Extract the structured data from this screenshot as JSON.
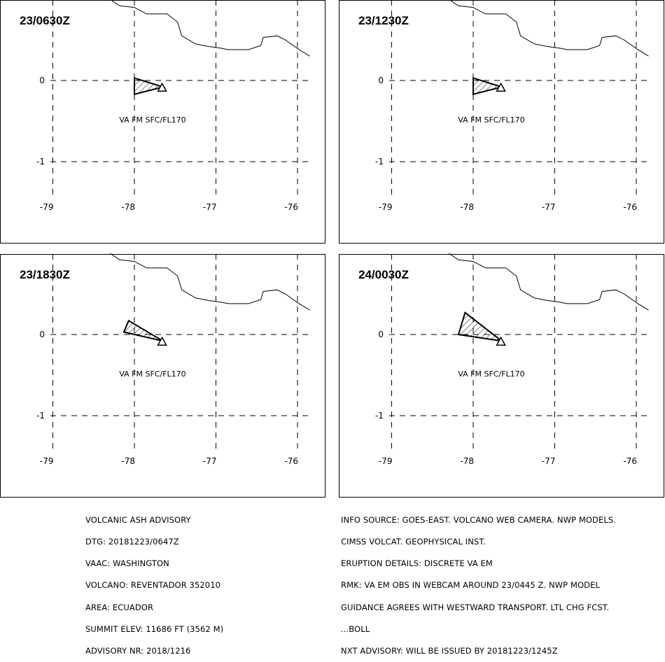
{
  "panels": [
    {
      "time": "23/0630Z",
      "label": "VA FM SFC/FL170",
      "ash_polygon": [
        [
          -78.0,
          -0.17
        ],
        [
          -78.0,
          0.03
        ],
        [
          -77.65,
          -0.08
        ]
      ]
    },
    {
      "time": "23/1230Z",
      "label": "VA FM SFC/FL170",
      "ash_polygon": [
        [
          -78.0,
          -0.17
        ],
        [
          -78.0,
          0.03
        ],
        [
          -77.65,
          -0.08
        ]
      ]
    },
    {
      "time": "23/1830Z",
      "label": "VA FM SFC/FL170",
      "ash_polygon": [
        [
          -78.13,
          0.03
        ],
        [
          -78.07,
          0.17
        ],
        [
          -77.65,
          -0.08
        ]
      ]
    },
    {
      "time": "24/0030Z",
      "label": "VA FM SFC/FL170",
      "ash_polygon": [
        [
          -78.18,
          0.0
        ],
        [
          -78.1,
          0.27
        ],
        [
          -77.65,
          -0.08
        ]
      ]
    }
  ],
  "map": {
    "lon_ticks": [
      "-79",
      "-78",
      "-77",
      "-76"
    ],
    "lat_ticks": [
      "0",
      "-1"
    ],
    "lon_range": [
      -79.0,
      -75.85
    ],
    "lat_range": [
      -1.5,
      1.0
    ],
    "gridlines": "dashed",
    "volcano_marker": "triangle-icon",
    "volcano_location": [
      -77.66,
      -0.08
    ],
    "border_line": [
      [
        -78.3,
        1.0
      ],
      [
        -78.18,
        0.92
      ],
      [
        -78.0,
        0.9
      ],
      [
        -77.85,
        0.82
      ],
      [
        -77.6,
        0.82
      ],
      [
        -77.47,
        0.72
      ],
      [
        -77.42,
        0.55
      ],
      [
        -77.25,
        0.45
      ],
      [
        -77.1,
        0.42
      ],
      [
        -76.95,
        0.4
      ],
      [
        -76.85,
        0.38
      ],
      [
        -76.6,
        0.38
      ],
      [
        -76.45,
        0.43
      ],
      [
        -76.42,
        0.53
      ],
      [
        -76.25,
        0.55
      ],
      [
        -76.15,
        0.5
      ],
      [
        -75.98,
        0.38
      ],
      [
        -75.85,
        0.3
      ]
    ]
  },
  "advisory_left": [
    "VOLCANIC ASH ADVISORY",
    "DTG: 20181223/0647Z",
    "VAAC: WASHINGTON",
    "VOLCANO: REVENTADOR 352010",
    "AREA: ECUADOR",
    "SUMMIT ELEV: 11686 FT (3562 M)",
    "ADVISORY NR: 2018/1216"
  ],
  "advisory_right": [
    "INFO SOURCE: GOES-EAST. VOLCANO WEB CAMERA. NWP MODELS.",
    "CIMSS VOLCAT. GEOPHYSICAL INST.",
    "ERUPTION DETAILS: DISCRETE VA EM",
    "RMK: VA EM OBS IN WEBCAM AROUND 23/0445 Z. NWP MODEL",
    "GUIDANCE AGREES WITH WESTWARD TRANSPORT. LTL CHG FCST.",
    "...BOLL",
    "NXT ADVISORY: WILL BE ISSUED BY 20181223/1245Z"
  ]
}
